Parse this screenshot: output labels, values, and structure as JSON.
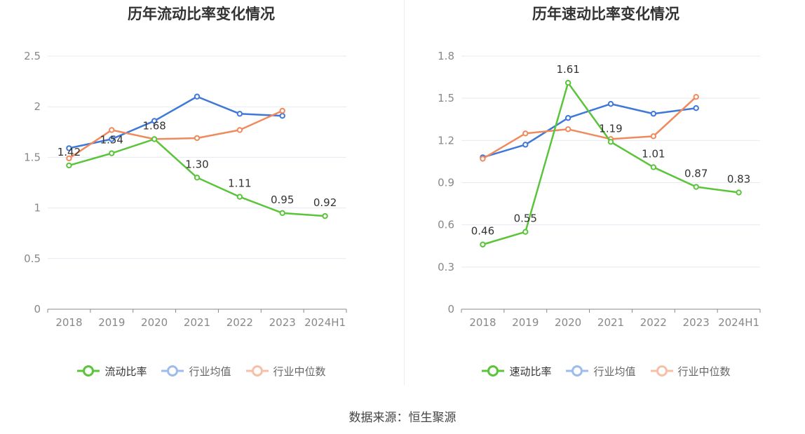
{
  "chart_data": [
    {
      "type": "line",
      "title": "历年流动比率变化情况",
      "categories": [
        "2018",
        "2019",
        "2020",
        "2021",
        "2022",
        "2023",
        "2024H1"
      ],
      "ylim": [
        0,
        2.5
      ],
      "yticks": [
        "0",
        "0.5",
        "1",
        "1.5",
        "2",
        "2.5"
      ],
      "ytick_values": [
        0,
        0.5,
        1,
        1.5,
        2,
        2.5
      ],
      "grid": true,
      "legend_position": "bottom-center",
      "series": [
        {
          "name": "流动比率",
          "color": "#5ac43a",
          "labeled": true,
          "values": [
            1.42,
            1.54,
            1.68,
            1.3,
            1.11,
            0.95,
            0.92
          ],
          "labels": [
            "1.42",
            "1.54",
            "1.68",
            "1.30",
            "1.11",
            "0.95",
            "0.92"
          ]
        },
        {
          "name": "行业均值",
          "color": "#3e78d8",
          "labeled": false,
          "values": [
            1.59,
            1.68,
            1.86,
            2.1,
            1.93,
            1.91,
            null
          ]
        },
        {
          "name": "行业中位数",
          "color": "#f08a5d",
          "labeled": false,
          "values": [
            1.49,
            1.77,
            1.68,
            1.69,
            1.77,
            1.96,
            null
          ]
        }
      ]
    },
    {
      "type": "line",
      "title": "历年速动比率变化情况",
      "categories": [
        "2018",
        "2019",
        "2020",
        "2021",
        "2022",
        "2023",
        "2024H1"
      ],
      "ylim": [
        0,
        1.8
      ],
      "yticks": [
        "0",
        "0.3",
        "0.6",
        "0.9",
        "1.2",
        "1.5",
        "1.8"
      ],
      "ytick_values": [
        0,
        0.3,
        0.6,
        0.9,
        1.2,
        1.5,
        1.8
      ],
      "grid": true,
      "legend_position": "bottom-center",
      "series": [
        {
          "name": "速动比率",
          "color": "#5ac43a",
          "labeled": true,
          "values": [
            0.46,
            0.55,
            1.61,
            1.19,
            1.01,
            0.87,
            0.83
          ],
          "labels": [
            "0.46",
            "0.55",
            "1.61",
            "1.19",
            "1.01",
            "0.87",
            "0.83"
          ]
        },
        {
          "name": "行业均值",
          "color": "#3e78d8",
          "labeled": false,
          "values": [
            1.08,
            1.17,
            1.36,
            1.46,
            1.39,
            1.43,
            null
          ]
        },
        {
          "name": "行业中位数",
          "color": "#f08a5d",
          "labeled": false,
          "values": [
            1.07,
            1.25,
            1.28,
            1.21,
            1.23,
            1.51,
            null
          ]
        }
      ]
    }
  ],
  "source": "数据来源：恒生聚源"
}
